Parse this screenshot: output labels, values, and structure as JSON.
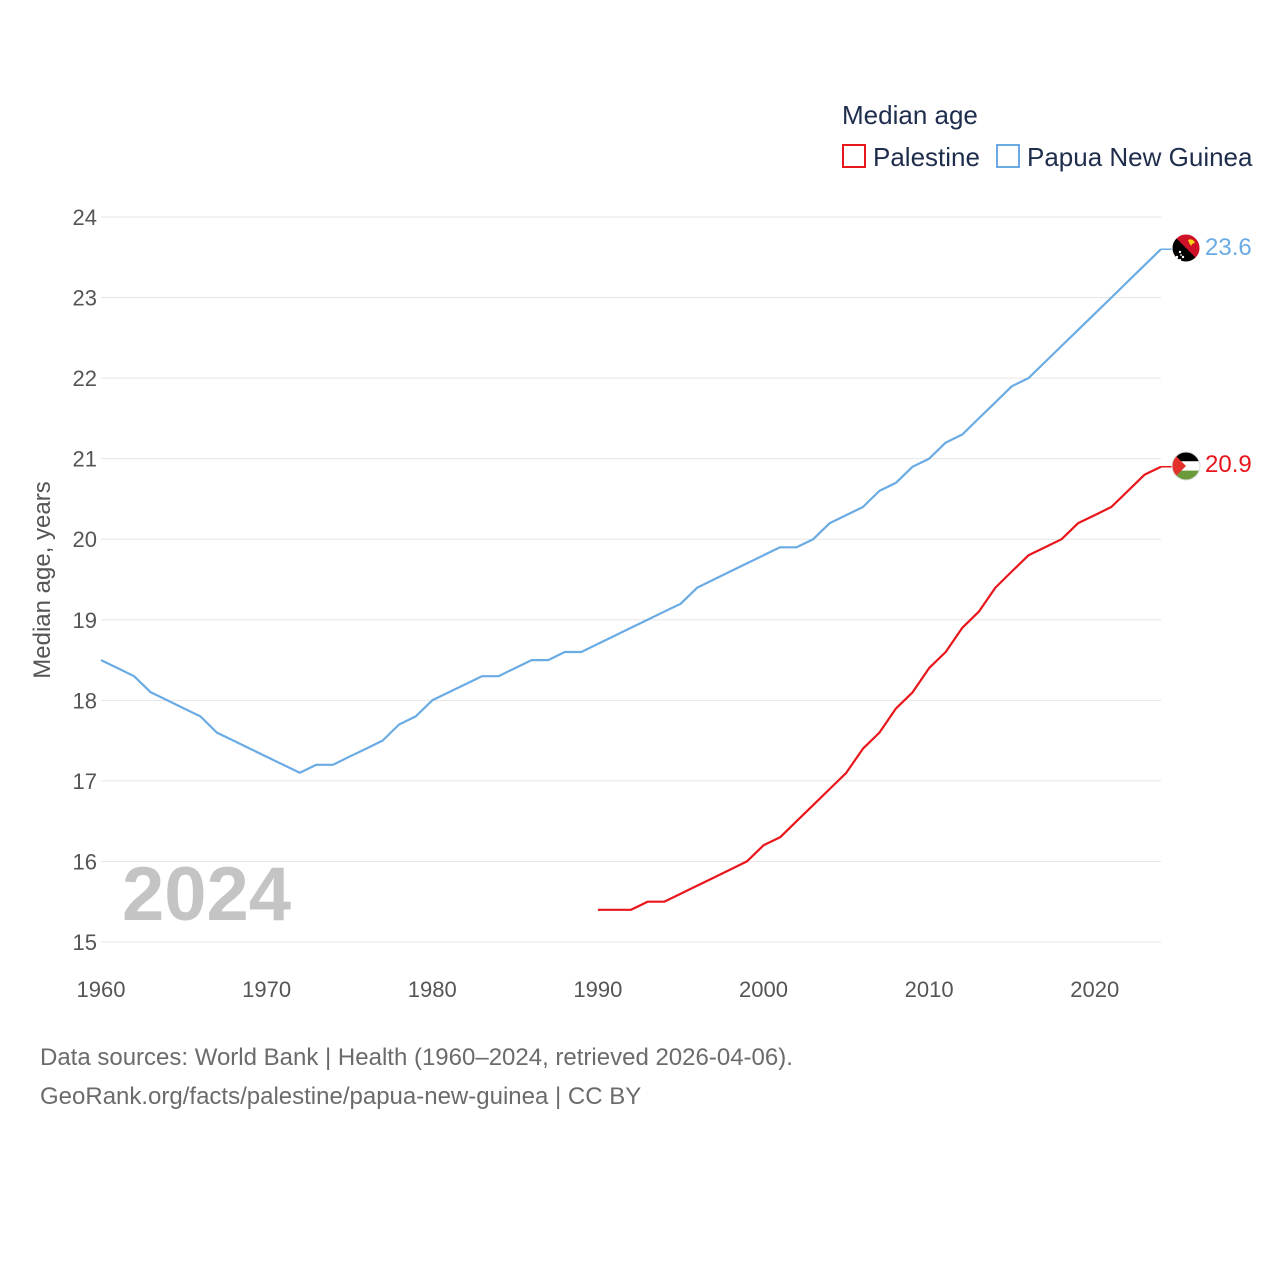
{
  "chart_data": {
    "type": "line",
    "legend_title": "Median age",
    "ylabel": "Median age, years",
    "xlabel": "",
    "xlim": [
      1960,
      2024
    ],
    "ylim": [
      15,
      24
    ],
    "x_ticks": [
      1960,
      1970,
      1980,
      1990,
      2000,
      2010,
      2020
    ],
    "y_ticks": [
      15,
      16,
      17,
      18,
      19,
      20,
      21,
      22,
      23,
      24
    ],
    "year_label": "2024",
    "series": [
      {
        "name": "Palestine",
        "color": "#e8161b",
        "end_label": "20.9",
        "flag": "palestine-flag",
        "points": [
          [
            1990,
            15.4
          ],
          [
            1991,
            15.4
          ],
          [
            1992,
            15.4
          ],
          [
            1993,
            15.5
          ],
          [
            1994,
            15.5
          ],
          [
            1995,
            15.6
          ],
          [
            1996,
            15.7
          ],
          [
            1997,
            15.8
          ],
          [
            1998,
            15.9
          ],
          [
            1999,
            16.0
          ],
          [
            2000,
            16.2
          ],
          [
            2001,
            16.3
          ],
          [
            2002,
            16.5
          ],
          [
            2003,
            16.7
          ],
          [
            2004,
            16.9
          ],
          [
            2005,
            17.1
          ],
          [
            2006,
            17.4
          ],
          [
            2007,
            17.6
          ],
          [
            2008,
            17.9
          ],
          [
            2009,
            18.1
          ],
          [
            2010,
            18.4
          ],
          [
            2011,
            18.6
          ],
          [
            2012,
            18.9
          ],
          [
            2013,
            19.1
          ],
          [
            2014,
            19.4
          ],
          [
            2015,
            19.6
          ],
          [
            2016,
            19.8
          ],
          [
            2017,
            19.9
          ],
          [
            2018,
            20.0
          ],
          [
            2019,
            20.2
          ],
          [
            2020,
            20.3
          ],
          [
            2021,
            20.4
          ],
          [
            2022,
            20.6
          ],
          [
            2023,
            20.8
          ],
          [
            2024,
            20.9
          ]
        ]
      },
      {
        "name": "Papua New Guinea",
        "color": "#6aabe4",
        "end_label": "23.6",
        "flag": "papua-new-guinea-flag",
        "points": [
          [
            1960,
            18.5
          ],
          [
            1961,
            18.4
          ],
          [
            1962,
            18.3
          ],
          [
            1963,
            18.1
          ],
          [
            1964,
            18.0
          ],
          [
            1965,
            17.9
          ],
          [
            1966,
            17.8
          ],
          [
            1967,
            17.6
          ],
          [
            1968,
            17.5
          ],
          [
            1969,
            17.4
          ],
          [
            1970,
            17.3
          ],
          [
            1971,
            17.2
          ],
          [
            1972,
            17.1
          ],
          [
            1973,
            17.2
          ],
          [
            1974,
            17.2
          ],
          [
            1975,
            17.3
          ],
          [
            1976,
            17.4
          ],
          [
            1977,
            17.5
          ],
          [
            1978,
            17.7
          ],
          [
            1979,
            17.8
          ],
          [
            1980,
            18.0
          ],
          [
            1981,
            18.1
          ],
          [
            1982,
            18.2
          ],
          [
            1983,
            18.3
          ],
          [
            1984,
            18.3
          ],
          [
            1985,
            18.4
          ],
          [
            1986,
            18.5
          ],
          [
            1987,
            18.5
          ],
          [
            1988,
            18.6
          ],
          [
            1989,
            18.6
          ],
          [
            1990,
            18.7
          ],
          [
            1991,
            18.8
          ],
          [
            1992,
            18.9
          ],
          [
            1993,
            19.0
          ],
          [
            1994,
            19.1
          ],
          [
            1995,
            19.2
          ],
          [
            1996,
            19.4
          ],
          [
            1997,
            19.5
          ],
          [
            1998,
            19.6
          ],
          [
            1999,
            19.7
          ],
          [
            2000,
            19.8
          ],
          [
            2001,
            19.9
          ],
          [
            2002,
            19.9
          ],
          [
            2003,
            20.0
          ],
          [
            2004,
            20.2
          ],
          [
            2005,
            20.3
          ],
          [
            2006,
            20.4
          ],
          [
            2007,
            20.6
          ],
          [
            2008,
            20.7
          ],
          [
            2009,
            20.9
          ],
          [
            2010,
            21.0
          ],
          [
            2011,
            21.2
          ],
          [
            2012,
            21.3
          ],
          [
            2013,
            21.5
          ],
          [
            2014,
            21.7
          ],
          [
            2015,
            21.9
          ],
          [
            2016,
            22.0
          ],
          [
            2017,
            22.2
          ],
          [
            2018,
            22.4
          ],
          [
            2019,
            22.6
          ],
          [
            2020,
            22.8
          ],
          [
            2021,
            23.0
          ],
          [
            2022,
            23.2
          ],
          [
            2023,
            23.4
          ],
          [
            2024,
            23.6
          ]
        ]
      }
    ]
  },
  "footer": {
    "source_line": "Data sources: World Bank | Health (1960–2024, retrieved 2026-04-06).",
    "url_line": "GeoRank.org/facts/palestine/papua-new-guinea | CC BY"
  }
}
